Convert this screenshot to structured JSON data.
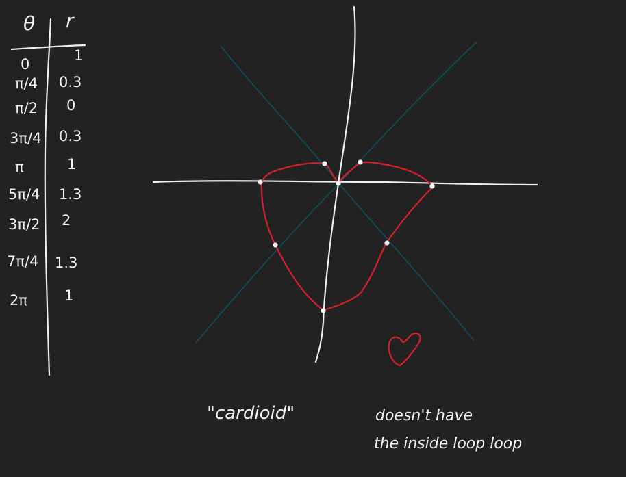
{
  "table": {
    "header_theta": "θ",
    "header_r": "r",
    "rows": [
      {
        "theta": "0",
        "r": "1"
      },
      {
        "theta": "π/4",
        "r": "0.3"
      },
      {
        "theta": "π/2",
        "r": "0"
      },
      {
        "theta": "3π/4",
        "r": "0.3"
      },
      {
        "theta": "π",
        "r": "1"
      },
      {
        "theta": "5π/4",
        "r": "1.3"
      },
      {
        "theta": "3π/2",
        "r": "2"
      },
      {
        "theta": "7π/4",
        "r": "1.3"
      },
      {
        "theta": "2π",
        "r": "1"
      }
    ]
  },
  "notes": {
    "cardioid": "\"cardioid\"",
    "line1": "doesn't have",
    "line2": "the inside loop loop"
  },
  "colors": {
    "ink": "#f0f0f0",
    "guides": "#0e4c63",
    "curve": "#d6202b",
    "background": "#222222"
  }
}
